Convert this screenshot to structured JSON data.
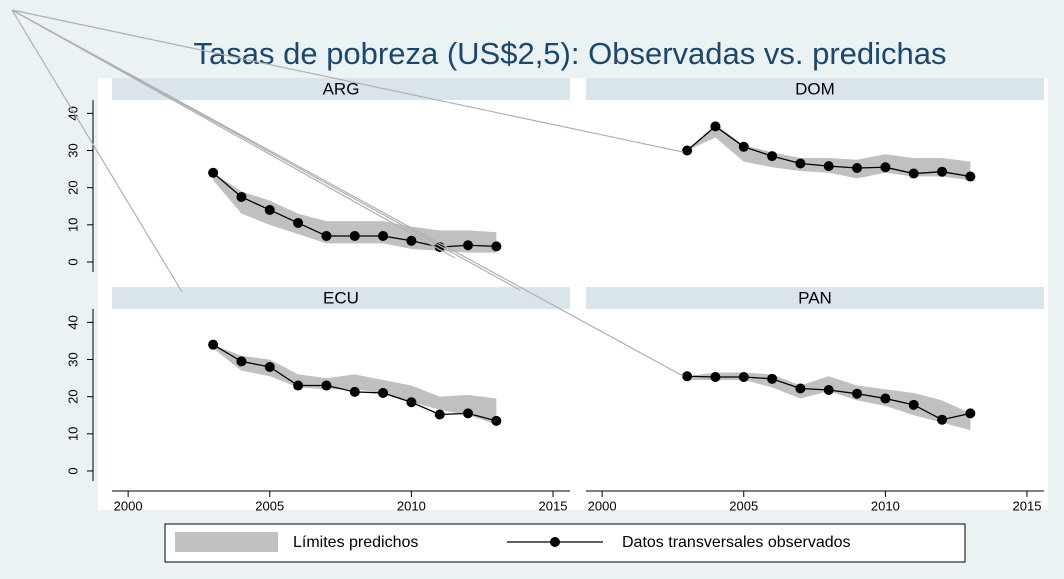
{
  "title": "Tasas de pobreza (US$2,5): Observadas vs. predichas",
  "chart_data": [
    {
      "type": "line",
      "title": "ARG",
      "x": [
        2003,
        2004,
        2005,
        2006,
        2007,
        2008,
        2009,
        2010,
        2011,
        2012,
        2013
      ],
      "xlim": [
        1999.43,
        2015.6
      ],
      "ylim": [
        -2.7,
        43.6
      ],
      "yticks": [
        0,
        10,
        20,
        30,
        40
      ],
      "series": [
        {
          "name": "Límites predichos",
          "color": "#c0c0c0",
          "lower": [
            22,
            13,
            10,
            7.5,
            5,
            5,
            5,
            3.5,
            3,
            2.5,
            2.5
          ],
          "upper": [
            24,
            19,
            16.5,
            13,
            11,
            11,
            11,
            9.5,
            8.5,
            8.5,
            8
          ]
        },
        {
          "name": "Datos transversales observados",
          "color": "#000000",
          "values": [
            24,
            17.5,
            14,
            10.5,
            7,
            7,
            7,
            5.7,
            4,
            4.5,
            4.2
          ]
        }
      ]
    },
    {
      "type": "line",
      "title": "DOM",
      "x": [
        2003,
        2004,
        2005,
        2006,
        2007,
        2008,
        2009,
        2010,
        2011,
        2012,
        2013
      ],
      "xlim": [
        1999.43,
        2015.6
      ],
      "ylim": [
        -2.7,
        43.6
      ],
      "series": [
        {
          "color": "#c0c0c0",
          "lower": [
            30,
            33.5,
            27,
            25.5,
            24.5,
            24,
            22.5,
            24,
            23,
            23,
            22
          ],
          "upper": [
            30,
            37,
            31.5,
            29.5,
            28,
            28,
            27.5,
            29,
            28,
            28,
            27
          ]
        },
        {
          "color": "#000000",
          "values": [
            30,
            36.5,
            31,
            28.5,
            26.5,
            25.8,
            25.3,
            25.5,
            23.8,
            24.3,
            23
          ]
        }
      ]
    },
    {
      "type": "line",
      "title": "ECU",
      "x": [
        2003,
        2004,
        2005,
        2006,
        2007,
        2008,
        2009,
        2010,
        2011,
        2012,
        2013
      ],
      "xlim": [
        1999.43,
        2015.6
      ],
      "ylim": [
        -2.7,
        43.6
      ],
      "yticks": [
        0,
        10,
        20,
        30,
        40
      ],
      "xticks": [
        2000,
        2005,
        2010,
        2015
      ],
      "series": [
        {
          "color": "#c0c0c0",
          "lower": [
            33,
            27,
            25.5,
            22.5,
            22,
            22,
            21,
            18.5,
            16.5,
            15,
            12.5
          ],
          "upper": [
            34,
            31,
            30,
            26,
            25,
            26,
            24.5,
            23,
            20,
            20.5,
            19.5
          ]
        },
        {
          "color": "#000000",
          "values": [
            34,
            29.5,
            28,
            23,
            23,
            21.3,
            21,
            18.5,
            15.2,
            15.5,
            13.5
          ]
        }
      ]
    },
    {
      "type": "line",
      "title": "PAN",
      "x": [
        2003,
        2004,
        2005,
        2006,
        2007,
        2008,
        2009,
        2010,
        2011,
        2012,
        2013
      ],
      "xlim": [
        1999.43,
        2015.6
      ],
      "ylim": [
        -2.7,
        43.6
      ],
      "xticks": [
        2000,
        2005,
        2010,
        2015
      ],
      "series": [
        {
          "color": "#c0c0c0",
          "lower": [
            24.5,
            24.5,
            24.5,
            22.5,
            19.5,
            21.5,
            19,
            17.5,
            15,
            13,
            11
          ],
          "upper": [
            25.5,
            26.5,
            26.5,
            26,
            23,
            25.5,
            23,
            22,
            21,
            19,
            15.5
          ]
        },
        {
          "color": "#000000",
          "values": [
            25.5,
            25.3,
            25.3,
            24.8,
            22.2,
            21.8,
            20.8,
            19.5,
            17.8,
            13.8,
            15.5
          ]
        }
      ]
    }
  ]
}
